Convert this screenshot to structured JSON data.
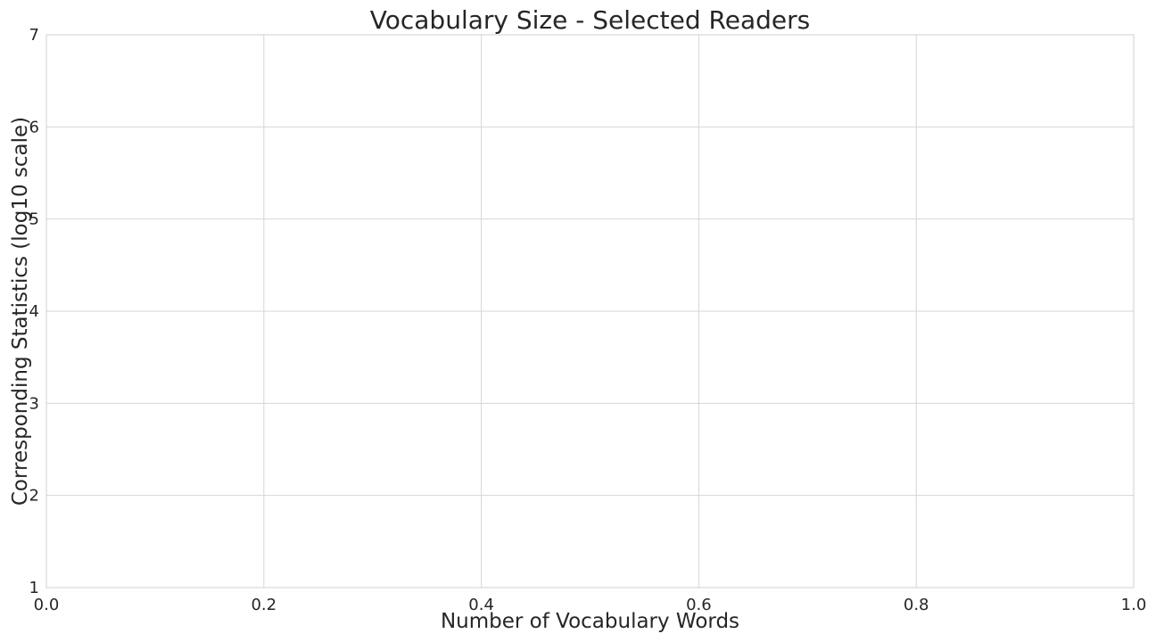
{
  "chart_data": {
    "type": "line",
    "title": "Vocabulary Size - Selected Readers",
    "xlabel": "Number of Vocabulary Words",
    "ylabel": "Corresponding Statistics (log10 scale)",
    "xlim": [
      0.0,
      1.0
    ],
    "ylim": [
      1,
      7
    ],
    "x_ticks": [
      "0.0",
      "0.2",
      "0.4",
      "0.6",
      "0.8",
      "1.0"
    ],
    "y_ticks": [
      "1",
      "2",
      "3",
      "4",
      "5",
      "6",
      "7"
    ],
    "series": [],
    "grid": true,
    "colors": {
      "grid": "#d6d6d6",
      "text": "#262626",
      "background": "#ffffff"
    }
  }
}
